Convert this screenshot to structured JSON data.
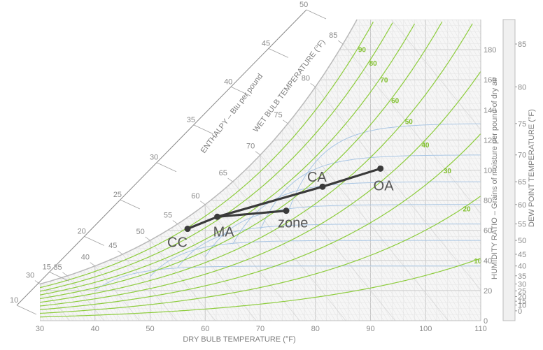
{
  "chart_data": {
    "type": "scatter",
    "title": "",
    "xlabel": "DRY BULB TEMPERATURE (°F)",
    "ylabel": "HUMIDITY RATIO – Grains of moisture per pound of dry air",
    "y2label": "DEW POINT TEMPERATURE (°F)",
    "enthalpy_label": "ENTHALPY – Btu per pound",
    "wetbulb_label": "WET BULB TEMPERATURE (°F)",
    "xlim": [
      30,
      110
    ],
    "ylim": [
      0,
      200
    ],
    "x_ticks": [
      30,
      40,
      50,
      60,
      70,
      80,
      90,
      100,
      110
    ],
    "y_ticks": [
      0,
      20,
      40,
      60,
      80,
      100,
      120,
      140,
      160,
      180
    ],
    "dewpoint_ticks": [
      0,
      10,
      15,
      20,
      25,
      30,
      35,
      40,
      45,
      50,
      55,
      60,
      65,
      70,
      75,
      80,
      85
    ],
    "wetbulb_ticks": [
      30,
      35,
      40,
      45,
      50,
      55,
      60,
      65,
      70,
      75,
      80,
      85
    ],
    "enthalpy_ticks": [
      10,
      15,
      20,
      25,
      30,
      35,
      40,
      45,
      50
    ],
    "rh_lines": [
      10,
      20,
      30,
      40,
      50,
      60,
      70,
      80,
      90
    ],
    "states": [
      {
        "name": "CC",
        "x": 56.8,
        "y": 61
      },
      {
        "name": "MA",
        "x": 62.2,
        "y": 69
      },
      {
        "name": "zone",
        "x": 74.7,
        "y": 73
      },
      {
        "name": "CA",
        "x": 81.3,
        "y": 89
      },
      {
        "name": "OA",
        "x": 91.8,
        "y": 101
      }
    ],
    "processes": [
      [
        "CC",
        "MA"
      ],
      [
        "MA",
        "zone"
      ],
      [
        "MA",
        "CA"
      ],
      [
        "CA",
        "OA"
      ]
    ],
    "colors": {
      "rh": "#8dcc3c",
      "saturation": "#b9b9b9",
      "grid": "#cfcfcf",
      "dewpoint": "#a9c6e4",
      "process": "#3a3a3a"
    }
  }
}
